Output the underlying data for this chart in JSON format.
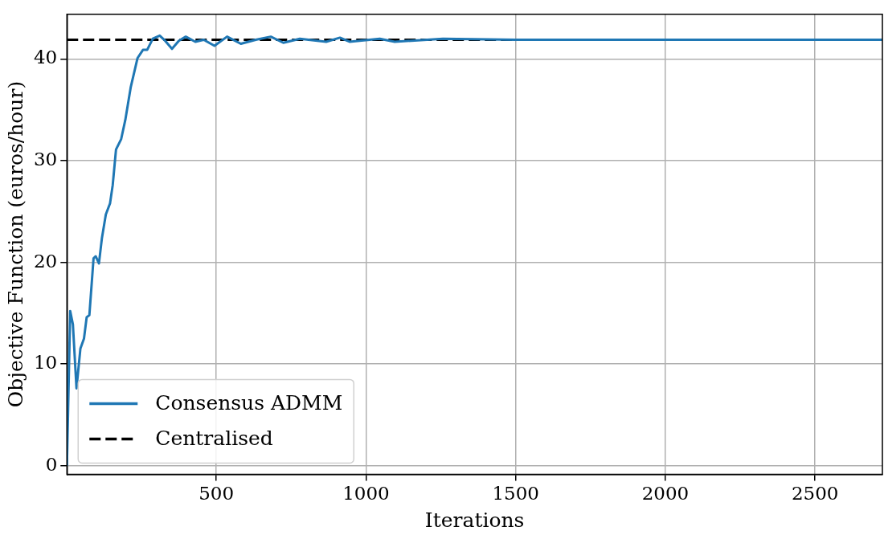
{
  "chart_data": {
    "type": "line",
    "xlabel": "Iterations",
    "ylabel": "Objective Function (euros/hour)",
    "xlim": [
      1,
      2725
    ],
    "ylim": [
      -0.85,
      44.4
    ],
    "xticks": [
      500,
      1000,
      1500,
      2000,
      2500
    ],
    "yticks": [
      0,
      10,
      20,
      30,
      40
    ],
    "grid": true,
    "legend": "bottom left",
    "marker": "none",
    "series": [
      {
        "name": "Consensus ADMM",
        "color": "#1f77b4",
        "line_style": "solid",
        "x": [
          1,
          12,
          21,
          33,
          46,
          58,
          67,
          76,
          90,
          97,
          108,
          118,
          131,
          145,
          154,
          165,
          182,
          196,
          214,
          237,
          255,
          269,
          288,
          311,
          329,
          352,
          375,
          398,
          430,
          458,
          494,
          536,
          582,
          632,
          682,
          724,
          779,
          867,
          913,
          945,
          1046,
          1096,
          1257,
          1500,
          2000,
          2725
        ],
        "values": [
          0,
          15.2,
          13.9,
          7.6,
          11.5,
          12.5,
          14.6,
          14.8,
          20.4,
          20.6,
          19.9,
          22.4,
          24.7,
          25.8,
          27.6,
          31.1,
          32.1,
          34.0,
          37.2,
          40.1,
          40.9,
          40.9,
          42.0,
          42.3,
          41.8,
          41.0,
          41.8,
          42.2,
          41.7,
          41.9,
          41.3,
          42.2,
          41.5,
          41.9,
          42.2,
          41.6,
          42.0,
          41.7,
          42.1,
          41.7,
          42.0,
          41.7,
          42.0,
          41.9,
          41.9,
          41.9
        ]
      },
      {
        "name": "Centralised",
        "color": "#000000",
        "line_style": "dashed",
        "x": [
          1,
          2725
        ],
        "values": [
          41.9,
          41.9
        ]
      }
    ]
  }
}
